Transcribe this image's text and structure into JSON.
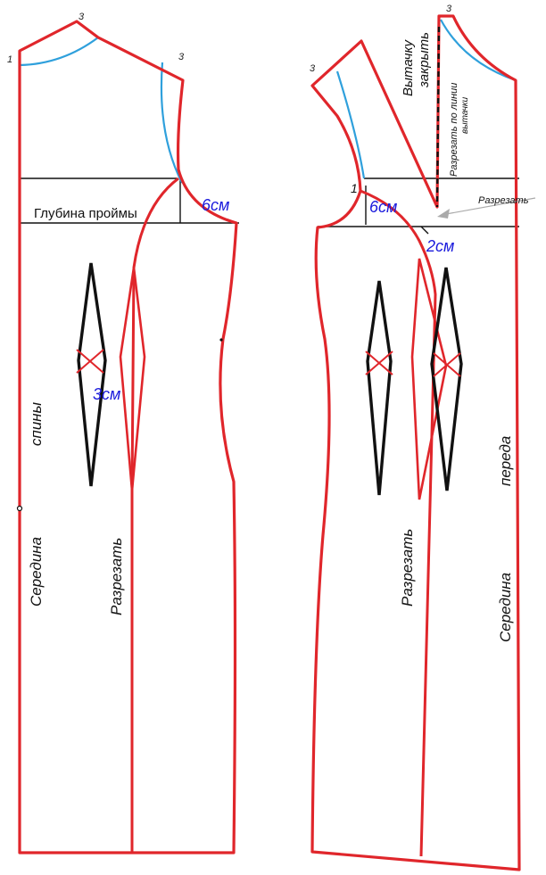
{
  "colors": {
    "outline": "#e0262b",
    "curve": "#2fa0dc",
    "construction": "#111111",
    "measure": "#1a1adc",
    "dart_cross": "#e0262b"
  },
  "back_piece": {
    "points": {
      "neck_center": "1",
      "shoulder_neck": "3",
      "shoulder_end": "3"
    },
    "armhole_depth": "Глубина проймы",
    "armhole_offset": "6см",
    "dart_offset": "3см",
    "center_label": "Середина",
    "center_label_2": "спины",
    "cut_label": "Разрезать"
  },
  "front_piece": {
    "points": {
      "shoulder_end": "3",
      "shoulder_neck": "3",
      "armhole_point": "1"
    },
    "dart_close_1": "Вытачку",
    "dart_close_2": "закрыть",
    "cut_dart_1": "Разрезать по линии",
    "cut_dart_2": "вытачки",
    "cut_side": "Разрезать",
    "armhole_offset": "6см",
    "side_offset": "2см",
    "center_label": "Середина",
    "center_label_2": "переда",
    "cut_label": "Разрезать"
  }
}
